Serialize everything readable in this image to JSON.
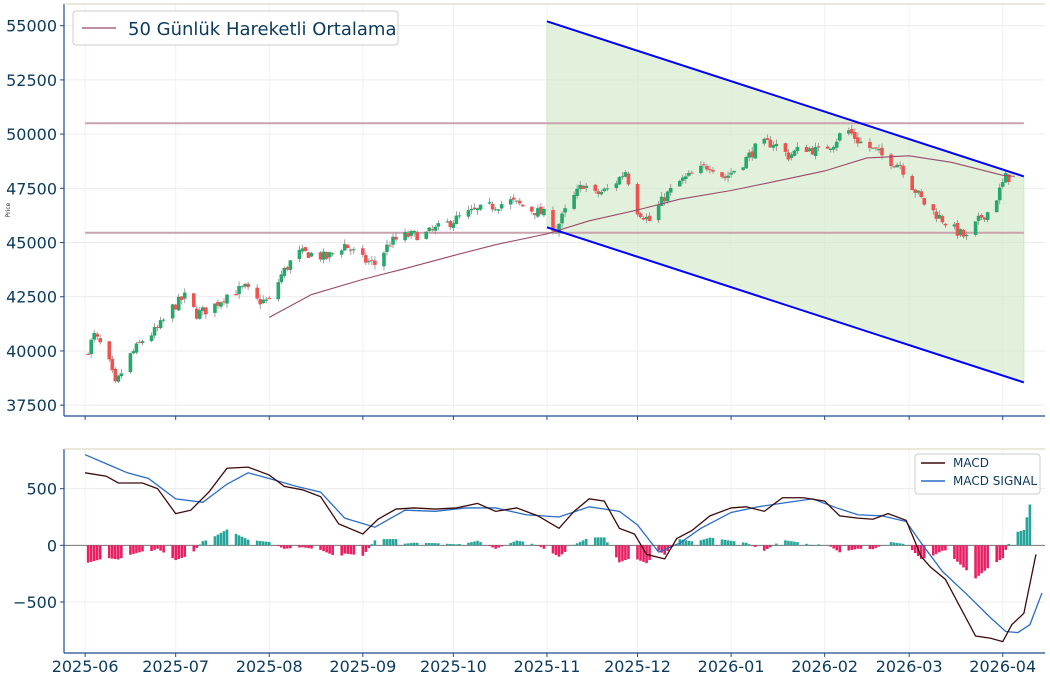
{
  "chart_data": [
    {
      "type": "candlestick",
      "ylabel": "Price",
      "ylim": [
        37000,
        56000
      ],
      "yticks": [
        37500,
        40000,
        42500,
        45000,
        47500,
        50000,
        52500,
        55000
      ],
      "legend": {
        "label": "50 Günlük Hareketli Ortalama",
        "placement": "top-left"
      },
      "grid": true,
      "colors": {
        "up": "#26a86b",
        "down": "#ef5350",
        "ma": "#9b4a6a",
        "trend": "#0000ff",
        "channel_fill": "#cfe8c4",
        "hline": "#c9a2ae"
      },
      "horizontal_lines": [
        50500,
        45450
      ],
      "trend_channel": {
        "upper": {
          "from": [
            "2025-11-01",
            55200
          ],
          "to": [
            "2026-04-08",
            48050
          ]
        },
        "lower": {
          "from": [
            "2025-11-01",
            45700
          ],
          "to": [
            "2026-04-08",
            38550
          ]
        }
      },
      "anchors": [
        [
          "2025-06-01",
          39800
        ],
        [
          "2025-06-04",
          40700
        ],
        [
          "2025-06-08",
          39900
        ],
        [
          "2025-06-11",
          38400
        ],
        [
          "2025-06-15",
          39600
        ],
        [
          "2025-06-20",
          40500
        ],
        [
          "2025-06-25",
          41000
        ],
        [
          "2025-06-30",
          42000
        ],
        [
          "2025-07-04",
          42500
        ],
        [
          "2025-07-08",
          41700
        ],
        [
          "2025-07-13",
          42000
        ],
        [
          "2025-07-18",
          42600
        ],
        [
          "2025-07-24",
          42900
        ],
        [
          "2025-07-28",
          42300
        ],
        [
          "2025-08-01",
          42300
        ],
        [
          "2025-08-05",
          43500
        ],
        [
          "2025-08-10",
          44500
        ],
        [
          "2025-08-14",
          44500
        ],
        [
          "2025-08-20",
          44300
        ],
        [
          "2025-08-26",
          44900
        ],
        [
          "2025-09-01",
          44200
        ],
        [
          "2025-09-05",
          44000
        ],
        [
          "2025-09-10",
          45000
        ],
        [
          "2025-09-15",
          45300
        ],
        [
          "2025-09-22",
          45400
        ],
        [
          "2025-09-28",
          45800
        ],
        [
          "2025-10-05",
          46300
        ],
        [
          "2025-10-12",
          46600
        ],
        [
          "2025-10-20",
          46900
        ],
        [
          "2025-10-27",
          46500
        ],
        [
          "2025-10-31",
          46300
        ],
        [
          "2025-11-04",
          45600
        ],
        [
          "2025-11-08",
          46700
        ],
        [
          "2025-11-13",
          47700
        ],
        [
          "2025-11-17",
          47200
        ],
        [
          "2025-11-22",
          47500
        ],
        [
          "2025-11-27",
          48300
        ],
        [
          "2025-12-01",
          46500
        ],
        [
          "2025-12-05",
          46000
        ],
        [
          "2025-12-10",
          47100
        ],
        [
          "2025-12-15",
          47800
        ],
        [
          "2025-12-20",
          48200
        ],
        [
          "2025-12-25",
          48600
        ],
        [
          "2025-12-30",
          48000
        ],
        [
          "2026-01-05",
          48700
        ],
        [
          "2026-01-10",
          49500
        ],
        [
          "2026-01-15",
          49600
        ],
        [
          "2026-01-20",
          49000
        ],
        [
          "2026-01-25",
          49400
        ],
        [
          "2026-01-30",
          49200
        ],
        [
          "2026-02-04",
          49600
        ],
        [
          "2026-02-08",
          50300
        ],
        [
          "2026-02-12",
          49700
        ],
        [
          "2026-02-18",
          49200
        ],
        [
          "2026-02-22",
          48800
        ],
        [
          "2026-02-26",
          48600
        ],
        [
          "2026-03-02",
          47600
        ],
        [
          "2026-03-06",
          46800
        ],
        [
          "2026-03-10",
          46300
        ],
        [
          "2026-03-15",
          45700
        ],
        [
          "2026-03-20",
          45200
        ],
        [
          "2026-03-25",
          46200
        ],
        [
          "2026-03-28",
          46500
        ],
        [
          "2026-04-02",
          48000
        ],
        [
          "2026-04-05",
          48000
        ]
      ],
      "moving_average_50": [
        [
          "2025-08-01",
          41550
        ],
        [
          "2025-08-15",
          42600
        ],
        [
          "2025-09-01",
          43300
        ],
        [
          "2025-09-15",
          43800
        ],
        [
          "2025-10-01",
          44400
        ],
        [
          "2025-10-15",
          44900
        ],
        [
          "2025-11-01",
          45400
        ],
        [
          "2025-11-15",
          46000
        ],
        [
          "2025-12-01",
          46500
        ],
        [
          "2025-12-15",
          47000
        ],
        [
          "2026-01-01",
          47400
        ],
        [
          "2026-01-15",
          47800
        ],
        [
          "2026-02-01",
          48300
        ],
        [
          "2026-02-15",
          48900
        ],
        [
          "2026-03-01",
          49000
        ],
        [
          "2026-03-15",
          48700
        ],
        [
          "2026-04-01",
          48100
        ],
        [
          "2026-04-05",
          48050
        ]
      ]
    },
    {
      "type": "macd",
      "ylim": [
        -950,
        850
      ],
      "yticks": [
        -500,
        0,
        500
      ],
      "legend": {
        "placement": "top-right",
        "macd_label": "MACD",
        "signal_label": "MACD SIGNAL"
      },
      "colors": {
        "macd": "#3d0a0a",
        "signal": "#2b6cc4",
        "hist_pos": "#26a69a",
        "hist_neg": "#e91e63"
      },
      "macd": [
        [
          "2025-06-01",
          640
        ],
        [
          "2025-06-08",
          610
        ],
        [
          "2025-06-12",
          550
        ],
        [
          "2025-06-20",
          550
        ],
        [
          "2025-06-25",
          500
        ],
        [
          "2025-07-01",
          280
        ],
        [
          "2025-07-06",
          310
        ],
        [
          "2025-07-12",
          470
        ],
        [
          "2025-07-18",
          680
        ],
        [
          "2025-07-25",
          690
        ],
        [
          "2025-08-01",
          620
        ],
        [
          "2025-08-06",
          520
        ],
        [
          "2025-08-12",
          490
        ],
        [
          "2025-08-18",
          430
        ],
        [
          "2025-08-24",
          190
        ],
        [
          "2025-09-01",
          100
        ],
        [
          "2025-09-06",
          230
        ],
        [
          "2025-09-12",
          320
        ],
        [
          "2025-09-18",
          330
        ],
        [
          "2025-09-25",
          320
        ],
        [
          "2025-10-02",
          330
        ],
        [
          "2025-10-09",
          370
        ],
        [
          "2025-10-15",
          300
        ],
        [
          "2025-10-22",
          330
        ],
        [
          "2025-10-29",
          260
        ],
        [
          "2025-11-05",
          150
        ],
        [
          "2025-11-10",
          300
        ],
        [
          "2025-11-15",
          410
        ],
        [
          "2025-11-20",
          390
        ],
        [
          "2025-11-25",
          150
        ],
        [
          "2025-11-30",
          100
        ],
        [
          "2025-12-04",
          -80
        ],
        [
          "2025-12-10",
          -120
        ],
        [
          "2025-12-14",
          60
        ],
        [
          "2025-12-19",
          130
        ],
        [
          "2025-12-25",
          260
        ],
        [
          "2026-01-01",
          330
        ],
        [
          "2026-01-06",
          340
        ],
        [
          "2026-01-12",
          300
        ],
        [
          "2026-01-18",
          420
        ],
        [
          "2026-01-25",
          420
        ],
        [
          "2026-02-01",
          390
        ],
        [
          "2026-02-06",
          260
        ],
        [
          "2026-02-12",
          240
        ],
        [
          "2026-02-17",
          230
        ],
        [
          "2026-02-22",
          280
        ],
        [
          "2026-02-28",
          220
        ],
        [
          "2026-03-05",
          -100
        ],
        [
          "2026-03-08",
          -190
        ],
        [
          "2026-03-13",
          -300
        ],
        [
          "2026-03-18",
          -550
        ],
        [
          "2026-03-23",
          -800
        ],
        [
          "2026-03-28",
          -820
        ],
        [
          "2026-04-01",
          -850
        ],
        [
          "2026-04-04",
          -700
        ],
        [
          "2026-04-08",
          -600
        ],
        [
          "2026-04-12",
          -80
        ]
      ],
      "signal": [
        [
          "2025-06-01",
          800
        ],
        [
          "2025-06-08",
          720
        ],
        [
          "2025-06-15",
          640
        ],
        [
          "2025-06-22",
          590
        ],
        [
          "2025-07-01",
          410
        ],
        [
          "2025-07-10",
          380
        ],
        [
          "2025-07-18",
          540
        ],
        [
          "2025-07-25",
          640
        ],
        [
          "2025-08-01",
          590
        ],
        [
          "2025-08-10",
          520
        ],
        [
          "2025-08-18",
          470
        ],
        [
          "2025-08-26",
          240
        ],
        [
          "2025-09-05",
          160
        ],
        [
          "2025-09-15",
          310
        ],
        [
          "2025-09-25",
          300
        ],
        [
          "2025-10-05",
          330
        ],
        [
          "2025-10-15",
          330
        ],
        [
          "2025-10-25",
          270
        ],
        [
          "2025-11-05",
          250
        ],
        [
          "2025-11-15",
          340
        ],
        [
          "2025-11-25",
          300
        ],
        [
          "2025-12-01",
          180
        ],
        [
          "2025-12-08",
          -60
        ],
        [
          "2025-12-15",
          20
        ],
        [
          "2025-12-22",
          150
        ],
        [
          "2026-01-01",
          290
        ],
        [
          "2026-01-10",
          340
        ],
        [
          "2026-01-20",
          380
        ],
        [
          "2026-01-28",
          410
        ],
        [
          "2026-02-05",
          330
        ],
        [
          "2026-02-12",
          270
        ],
        [
          "2026-02-20",
          260
        ],
        [
          "2026-02-28",
          210
        ],
        [
          "2026-03-05",
          20
        ],
        [
          "2026-03-12",
          -230
        ],
        [
          "2026-03-20",
          -430
        ],
        [
          "2026-03-28",
          -640
        ],
        [
          "2026-04-02",
          -760
        ],
        [
          "2026-04-06",
          -770
        ],
        [
          "2026-04-10",
          -700
        ],
        [
          "2026-04-14",
          -420
        ]
      ]
    }
  ],
  "x_axis": {
    "start": "2025-05-25",
    "end": "2026-04-15",
    "ticks": [
      "2025-06",
      "2025-07",
      "2025-08",
      "2025-09",
      "2025-10",
      "2025-11",
      "2025-12",
      "2026-01",
      "2026-02",
      "2026-03",
      "2026-04"
    ]
  }
}
